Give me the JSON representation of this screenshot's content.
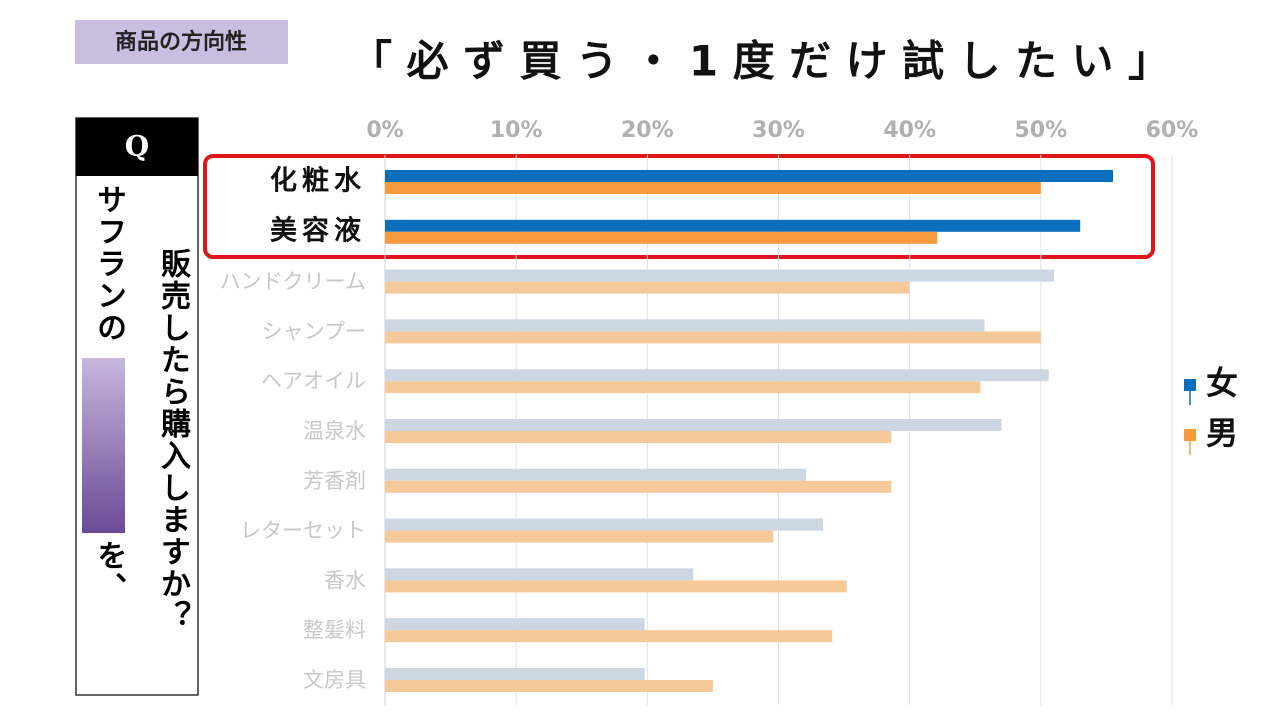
{
  "tag": "商品の方向性",
  "question": {
    "label": "Q",
    "line1_before": "サフランの",
    "line1_after": "を、",
    "line2": "販売したら購入しますか？"
  },
  "chart_data": {
    "type": "hbar",
    "title": "「必ず買う・1度だけ試したい」",
    "categories": [
      "化粧水",
      "美容液",
      "ハンドクリーム",
      "シャンプー",
      "ヘアオイル",
      "温泉水",
      "芳香剤",
      "レターセット",
      "香水",
      "整髪料",
      "文房具"
    ],
    "series": [
      {
        "name": "女",
        "color": "#0a6ebd",
        "colors": [
          "#0a6ebd",
          "#0a6ebd",
          "#cdd6e3",
          "#cdd6e3",
          "#cdd6e3",
          "#cdd6e3",
          "#cdd6e3",
          "#cdd6e3",
          "#cdd6e3",
          "#cdd6e3",
          "#cdd6e3"
        ],
        "values": [
          55.5,
          53.0,
          51.0,
          45.7,
          50.6,
          47.0,
          32.1,
          33.4,
          23.5,
          19.8,
          19.8
        ]
      },
      {
        "name": "男",
        "color": "#f79a3e",
        "colors": [
          "#f79a3e",
          "#f79a3e",
          "#f5c99a",
          "#f5c99a",
          "#f5c99a",
          "#f5c99a",
          "#f5c99a",
          "#f5c99a",
          "#f5c99a",
          "#f5c99a",
          "#f5c99a"
        ],
        "values": [
          50.0,
          42.1,
          40.0,
          50.0,
          45.4,
          38.6,
          38.6,
          29.6,
          35.2,
          34.1,
          25.0
        ]
      }
    ],
    "xlim": [
      0,
      60
    ],
    "xticks": [
      {
        "value": 0,
        "label": "0%"
      },
      {
        "value": 10,
        "label": "10%"
      },
      {
        "value": 20,
        "label": "20%"
      },
      {
        "value": 30,
        "label": "30%"
      },
      {
        "value": 40,
        "label": "40%"
      },
      {
        "value": 50,
        "label": "50%"
      },
      {
        "value": 60,
        "label": "60%"
      }
    ],
    "grid": true,
    "legend": "right"
  }
}
